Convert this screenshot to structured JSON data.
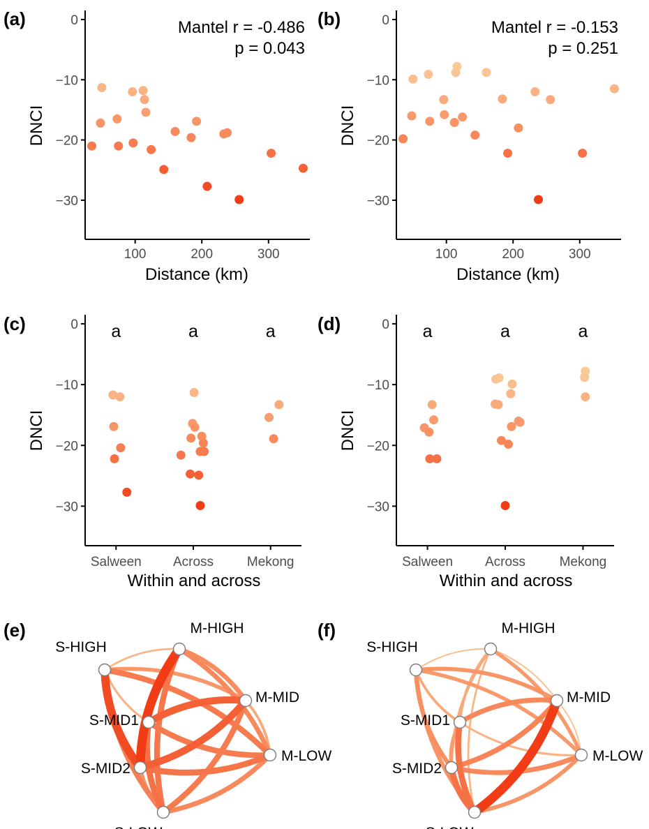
{
  "panel_labels": [
    "(a)",
    "(b)",
    "(c)",
    "(d)",
    "(e)",
    "(f)"
  ],
  "colors": {
    "low": "#fbc998",
    "mid": "#f7895c",
    "high": "#f13b14",
    "axis": "#000000",
    "tick_text": "#4d4d4d",
    "node_fill": "#ffffff",
    "node_stroke": "#7f7f7f"
  },
  "chart_data": [
    {
      "panel": "(a)",
      "type": "scatter",
      "xlabel": "Distance (km)",
      "ylabel": "DNCI",
      "xlim": [
        25,
        362
      ],
      "ylim": [
        -36.5,
        1.5
      ],
      "xticks": [
        100,
        200,
        300
      ],
      "yticks": [
        0,
        -10,
        -20,
        -30
      ],
      "annotation": [
        "Mantel r = -0.486",
        "p = 0.043"
      ],
      "points": [
        {
          "x": 35,
          "y": -21.0
        },
        {
          "x": 48,
          "y": -17.2
        },
        {
          "x": 50,
          "y": -11.3
        },
        {
          "x": 73,
          "y": -16.5
        },
        {
          "x": 75,
          "y": -21.0
        },
        {
          "x": 96,
          "y": -12.0
        },
        {
          "x": 97,
          "y": -20.5
        },
        {
          "x": 112,
          "y": -11.8
        },
        {
          "x": 114,
          "y": -13.3
        },
        {
          "x": 116,
          "y": -15.4
        },
        {
          "x": 124,
          "y": -21.6
        },
        {
          "x": 143,
          "y": -24.9
        },
        {
          "x": 160,
          "y": -18.6
        },
        {
          "x": 184,
          "y": -19.6
        },
        {
          "x": 192,
          "y": -16.9
        },
        {
          "x": 208,
          "y": -27.7
        },
        {
          "x": 233,
          "y": -19.0
        },
        {
          "x": 238,
          "y": -18.8
        },
        {
          "x": 256,
          "y": -29.9
        },
        {
          "x": 304,
          "y": -22.2
        },
        {
          "x": 352,
          "y": -24.7
        }
      ]
    },
    {
      "panel": "(b)",
      "type": "scatter",
      "xlabel": "Distance (km)",
      "ylabel": "DNCI",
      "xlim": [
        25,
        362
      ],
      "ylim": [
        -36.5,
        1.5
      ],
      "xticks": [
        100,
        200,
        300
      ],
      "yticks": [
        0,
        -10,
        -20,
        -30
      ],
      "annotation": [
        "Mantel r = -0.153",
        "p = 0.251"
      ],
      "points": [
        {
          "x": 35,
          "y": -19.8
        },
        {
          "x": 48,
          "y": -16.0
        },
        {
          "x": 50,
          "y": -9.9
        },
        {
          "x": 73,
          "y": -9.1
        },
        {
          "x": 75,
          "y": -16.9
        },
        {
          "x": 96,
          "y": -13.3
        },
        {
          "x": 97,
          "y": -15.8
        },
        {
          "x": 112,
          "y": -17.1
        },
        {
          "x": 114,
          "y": -8.8
        },
        {
          "x": 116,
          "y": -7.8
        },
        {
          "x": 124,
          "y": -16.2
        },
        {
          "x": 143,
          "y": -19.2
        },
        {
          "x": 160,
          "y": -8.8
        },
        {
          "x": 184,
          "y": -13.2
        },
        {
          "x": 192,
          "y": -22.2
        },
        {
          "x": 208,
          "y": -18.0
        },
        {
          "x": 233,
          "y": -12.0
        },
        {
          "x": 238,
          "y": -29.9
        },
        {
          "x": 256,
          "y": -13.3
        },
        {
          "x": 304,
          "y": -22.2
        },
        {
          "x": 352,
          "y": -11.5
        }
      ]
    },
    {
      "panel": "(c)",
      "type": "scatter",
      "xlabel": "Within and across",
      "ylabel": "DNCI",
      "categories": [
        "Salween",
        "Across",
        "Mekong"
      ],
      "ylim": [
        -36.5,
        1.5
      ],
      "yticks": [
        0,
        -10,
        -20,
        -30
      ],
      "group_letters": [
        "a",
        "a",
        "a"
      ],
      "points": [
        {
          "group": "Salween",
          "y": -11.7,
          "jitter": -0.04
        },
        {
          "group": "Salween",
          "y": -12.0,
          "jitter": 0.05
        },
        {
          "group": "Salween",
          "y": -16.9,
          "jitter": -0.03
        },
        {
          "group": "Salween",
          "y": -20.4,
          "jitter": 0.06
        },
        {
          "group": "Salween",
          "y": -22.2,
          "jitter": -0.02
        },
        {
          "group": "Salween",
          "y": -27.7,
          "jitter": 0.14
        },
        {
          "group": "Across",
          "y": -11.3,
          "jitter": 0.01
        },
        {
          "group": "Across",
          "y": -16.4,
          "jitter": -0.01
        },
        {
          "group": "Across",
          "y": -17.0,
          "jitter": 0.02
        },
        {
          "group": "Across",
          "y": -18.5,
          "jitter": 0.11
        },
        {
          "group": "Across",
          "y": -18.8,
          "jitter": -0.03
        },
        {
          "group": "Across",
          "y": -19.6,
          "jitter": 0.13
        },
        {
          "group": "Across",
          "y": -21.0,
          "jitter": 0.09
        },
        {
          "group": "Across",
          "y": -21.0,
          "jitter": 0.14
        },
        {
          "group": "Across",
          "y": -21.6,
          "jitter": -0.16
        },
        {
          "group": "Across",
          "y": -24.7,
          "jitter": -0.04
        },
        {
          "group": "Across",
          "y": -24.9,
          "jitter": 0.07
        },
        {
          "group": "Across",
          "y": -29.9,
          "jitter": 0.09
        },
        {
          "group": "Mekong",
          "y": -13.3,
          "jitter": 0.11
        },
        {
          "group": "Mekong",
          "y": -15.4,
          "jitter": -0.02
        },
        {
          "group": "Mekong",
          "y": -18.9,
          "jitter": 0.04
        }
      ]
    },
    {
      "panel": "(d)",
      "type": "scatter",
      "xlabel": "Within and across",
      "ylabel": "DNCI",
      "categories": [
        "Salween",
        "Across",
        "Mekong"
      ],
      "ylim": [
        -36.5,
        1.5
      ],
      "yticks": [
        0,
        -10,
        -20,
        -30
      ],
      "group_letters": [
        "a",
        "a",
        "a"
      ],
      "points": [
        {
          "group": "Salween",
          "y": -13.3,
          "jitter": 0.06
        },
        {
          "group": "Salween",
          "y": -15.8,
          "jitter": 0.08
        },
        {
          "group": "Salween",
          "y": -17.1,
          "jitter": -0.04
        },
        {
          "group": "Salween",
          "y": -17.8,
          "jitter": 0.02
        },
        {
          "group": "Salween",
          "y": -22.2,
          "jitter": 0.03
        },
        {
          "group": "Salween",
          "y": -22.2,
          "jitter": 0.12
        },
        {
          "group": "Across",
          "y": -9.1,
          "jitter": -0.12
        },
        {
          "group": "Across",
          "y": -8.9,
          "jitter": -0.08
        },
        {
          "group": "Across",
          "y": -9.9,
          "jitter": 0.09
        },
        {
          "group": "Across",
          "y": -11.5,
          "jitter": 0.07
        },
        {
          "group": "Across",
          "y": -13.2,
          "jitter": -0.13
        },
        {
          "group": "Across",
          "y": -13.3,
          "jitter": -0.09
        },
        {
          "group": "Across",
          "y": -16.0,
          "jitter": 0.17
        },
        {
          "group": "Across",
          "y": -16.2,
          "jitter": 0.19
        },
        {
          "group": "Across",
          "y": -16.9,
          "jitter": 0.08
        },
        {
          "group": "Across",
          "y": -19.2,
          "jitter": -0.05
        },
        {
          "group": "Across",
          "y": -19.8,
          "jitter": 0.04
        },
        {
          "group": "Across",
          "y": -29.9,
          "jitter": 0.0
        },
        {
          "group": "Mekong",
          "y": -7.8,
          "jitter": 0.03
        },
        {
          "group": "Mekong",
          "y": -8.8,
          "jitter": 0.02
        },
        {
          "group": "Mekong",
          "y": -12.0,
          "jitter": 0.03
        }
      ]
    },
    {
      "panel": "(e)",
      "type": "network",
      "nodes": [
        "S-HIGH",
        "M-HIGH",
        "M-MID",
        "S-MID1",
        "M-LOW",
        "S-MID2",
        "S-LOW"
      ],
      "edges": [
        {
          "from": "S-HIGH",
          "to": "M-HIGH",
          "dnci": -11.3
        },
        {
          "from": "S-HIGH",
          "to": "M-MID",
          "dnci": -16.5
        },
        {
          "from": "S-HIGH",
          "to": "S-MID1",
          "dnci": -12.0
        },
        {
          "from": "S-HIGH",
          "to": "M-LOW",
          "dnci": -21.0
        },
        {
          "from": "S-HIGH",
          "to": "S-MID2",
          "dnci": -27.7
        },
        {
          "from": "S-HIGH",
          "to": "S-LOW",
          "dnci": -20.4
        },
        {
          "from": "M-HIGH",
          "to": "M-MID",
          "dnci": -18.5
        },
        {
          "from": "M-HIGH",
          "to": "S-MID1",
          "dnci": -19.6
        },
        {
          "from": "M-HIGH",
          "to": "M-LOW",
          "dnci": -18.9
        },
        {
          "from": "M-HIGH",
          "to": "S-MID2",
          "dnci": -29.9
        },
        {
          "from": "M-HIGH",
          "to": "S-LOW",
          "dnci": -21.6
        },
        {
          "from": "M-MID",
          "to": "S-MID1",
          "dnci": -24.7
        },
        {
          "from": "M-MID",
          "to": "M-LOW",
          "dnci": -13.3
        },
        {
          "from": "M-MID",
          "to": "S-MID2",
          "dnci": -24.9
        },
        {
          "from": "M-MID",
          "to": "S-LOW",
          "dnci": -21.0
        },
        {
          "from": "S-MID1",
          "to": "M-LOW",
          "dnci": -21.0
        },
        {
          "from": "S-MID1",
          "to": "S-MID2",
          "dnci": -16.9
        },
        {
          "from": "S-MID1",
          "to": "S-LOW",
          "dnci": -22.2
        },
        {
          "from": "M-LOW",
          "to": "S-MID2",
          "dnci": -22.0
        },
        {
          "from": "M-LOW",
          "to": "S-LOW",
          "dnci": -19.0
        },
        {
          "from": "S-MID2",
          "to": "S-LOW",
          "dnci": -17.2
        }
      ]
    },
    {
      "panel": "(f)",
      "type": "network",
      "nodes": [
        "S-HIGH",
        "M-HIGH",
        "M-MID",
        "S-MID1",
        "M-LOW",
        "S-MID2",
        "S-LOW"
      ],
      "edges": [
        {
          "from": "S-HIGH",
          "to": "M-HIGH",
          "dnci": -9.9
        },
        {
          "from": "S-HIGH",
          "to": "M-MID",
          "dnci": -16.9
        },
        {
          "from": "S-HIGH",
          "to": "S-MID1",
          "dnci": -13.3
        },
        {
          "from": "S-HIGH",
          "to": "M-LOW",
          "dnci": -16.2
        },
        {
          "from": "S-HIGH",
          "to": "S-MID2",
          "dnci": -17.8
        },
        {
          "from": "S-HIGH",
          "to": "S-LOW",
          "dnci": -17.1
        },
        {
          "from": "M-HIGH",
          "to": "M-MID",
          "dnci": -9.1
        },
        {
          "from": "M-HIGH",
          "to": "S-MID1",
          "dnci": -13.2
        },
        {
          "from": "M-HIGH",
          "to": "M-LOW",
          "dnci": -16.0
        },
        {
          "from": "M-HIGH",
          "to": "S-MID2",
          "dnci": -13.3
        },
        {
          "from": "M-HIGH",
          "to": "S-LOW",
          "dnci": -11.5
        },
        {
          "from": "M-MID",
          "to": "S-MID1",
          "dnci": -19.2
        },
        {
          "from": "M-MID",
          "to": "M-LOW",
          "dnci": -8.8
        },
        {
          "from": "M-MID",
          "to": "S-MID2",
          "dnci": -19.8
        },
        {
          "from": "M-MID",
          "to": "S-LOW",
          "dnci": -29.9
        },
        {
          "from": "S-MID1",
          "to": "M-LOW",
          "dnci": -12.0
        },
        {
          "from": "S-MID1",
          "to": "S-MID2",
          "dnci": -15.8
        },
        {
          "from": "S-MID1",
          "to": "S-LOW",
          "dnci": -22.2
        },
        {
          "from": "M-LOW",
          "to": "S-MID2",
          "dnci": -19.0
        },
        {
          "from": "M-LOW",
          "to": "S-LOW",
          "dnci": -16.9
        },
        {
          "from": "S-MID2",
          "to": "S-LOW",
          "dnci": -22.2
        }
      ]
    }
  ]
}
